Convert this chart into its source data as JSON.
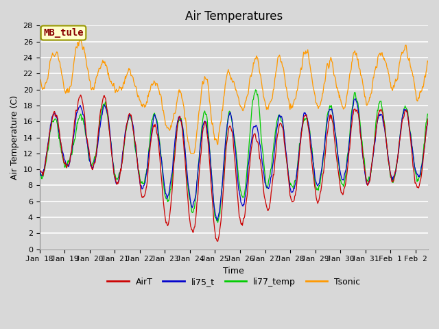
{
  "title": "Air Temperatures",
  "xlabel": "Time",
  "ylabel": "Air Temperature (C)",
  "annotation": "MB_tule",
  "ylim": [
    0,
    28
  ],
  "series_colors": {
    "AirT": "#cc0000",
    "li75_t": "#0000cc",
    "li77_temp": "#00cc00",
    "Tsonic": "#ff9900"
  },
  "bg_color": "#d8d8d8",
  "plot_bg_color": "#d8d8d8",
  "grid_color": "#ffffff",
  "annotation_bg": "#ffffcc",
  "annotation_border": "#999900",
  "annotation_text_color": "#880000",
  "title_fontsize": 12,
  "axis_label_fontsize": 9,
  "tick_fontsize": 8,
  "legend_fontsize": 9,
  "x_tick_labels": [
    "Jan 18",
    "Jan 19",
    "Jan 20",
    "Jan 21",
    "Jan 22",
    "Jan 23",
    "Jan 24",
    "Jan 25",
    "Jan 26",
    "Jan 27",
    "Jan 28",
    "Jan 29",
    "Jan 30",
    "Jan 31",
    "Feb 1",
    "Feb 2"
  ]
}
